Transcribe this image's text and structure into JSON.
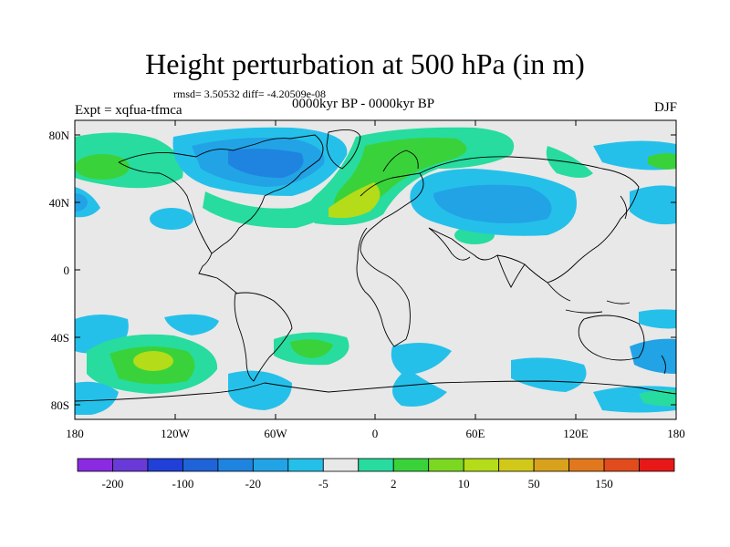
{
  "title": "Height perturbation at 500 hPa (in m)",
  "stats": "rmsd= 3.50532 diff= -4.20509e-08",
  "experiment": "Expt = xqfua-tfmca",
  "period": "0000kyr BP - 0000kyr BP",
  "season": "DJF",
  "map": {
    "background": "#e8e8e8",
    "lat_labels": [
      "80N",
      "40N",
      "0",
      "40S",
      "80S"
    ],
    "lon_labels": [
      "180",
      "120W",
      "60W",
      "0",
      "60E",
      "120E",
      "180"
    ]
  },
  "colorbar": {
    "colors": [
      "#8a2be2",
      "#6a3ad8",
      "#2040d8",
      "#1f63d8",
      "#1e84e0",
      "#22a3e6",
      "#25c0ea",
      "#e8e8e8",
      "#27dc9e",
      "#3ad23a",
      "#7ad820",
      "#b4dc18",
      "#d2c81a",
      "#d8a21c",
      "#e2781e",
      "#e24c1c",
      "#e81818"
    ],
    "labels": [
      {
        "text": "-200",
        "after_box": 1
      },
      {
        "text": "-100",
        "after_box": 3
      },
      {
        "text": "-20",
        "after_box": 5
      },
      {
        "text": "-5",
        "after_box": 7
      },
      {
        "text": "2",
        "after_box": 9
      },
      {
        "text": "10",
        "after_box": 11
      },
      {
        "text": "50",
        "after_box": 13
      },
      {
        "text": "150",
        "after_box": 15
      }
    ]
  }
}
